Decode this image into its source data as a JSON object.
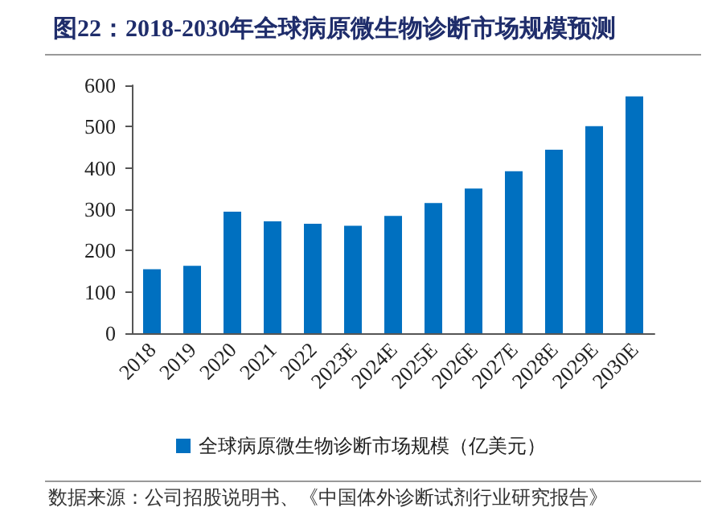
{
  "chart_data": {
    "type": "bar",
    "title": "图22：2018-2030年全球病原微生物诊断市场规模预测",
    "categories": [
      "2018",
      "2019",
      "2020",
      "2021",
      "2022",
      "2023E",
      "2024E",
      "2025E",
      "2026E",
      "2027E",
      "2028E",
      "2029E",
      "2030E"
    ],
    "series": [
      {
        "name": "全球病原微生物诊断市场规模（亿美元）",
        "color": "#0070c0",
        "values": [
          155,
          163,
          294,
          271,
          265,
          260,
          284,
          315,
          350,
          392,
          444,
          501,
          573
        ]
      }
    ],
    "ylim": [
      0,
      600
    ],
    "yticks": [
      0,
      100,
      200,
      300,
      400,
      500,
      600
    ],
    "grid": false,
    "legend": "bottom",
    "annotations": [
      "数据来源：公司招股说明书、《中国体外诊断试剂行业研究报告》"
    ]
  }
}
